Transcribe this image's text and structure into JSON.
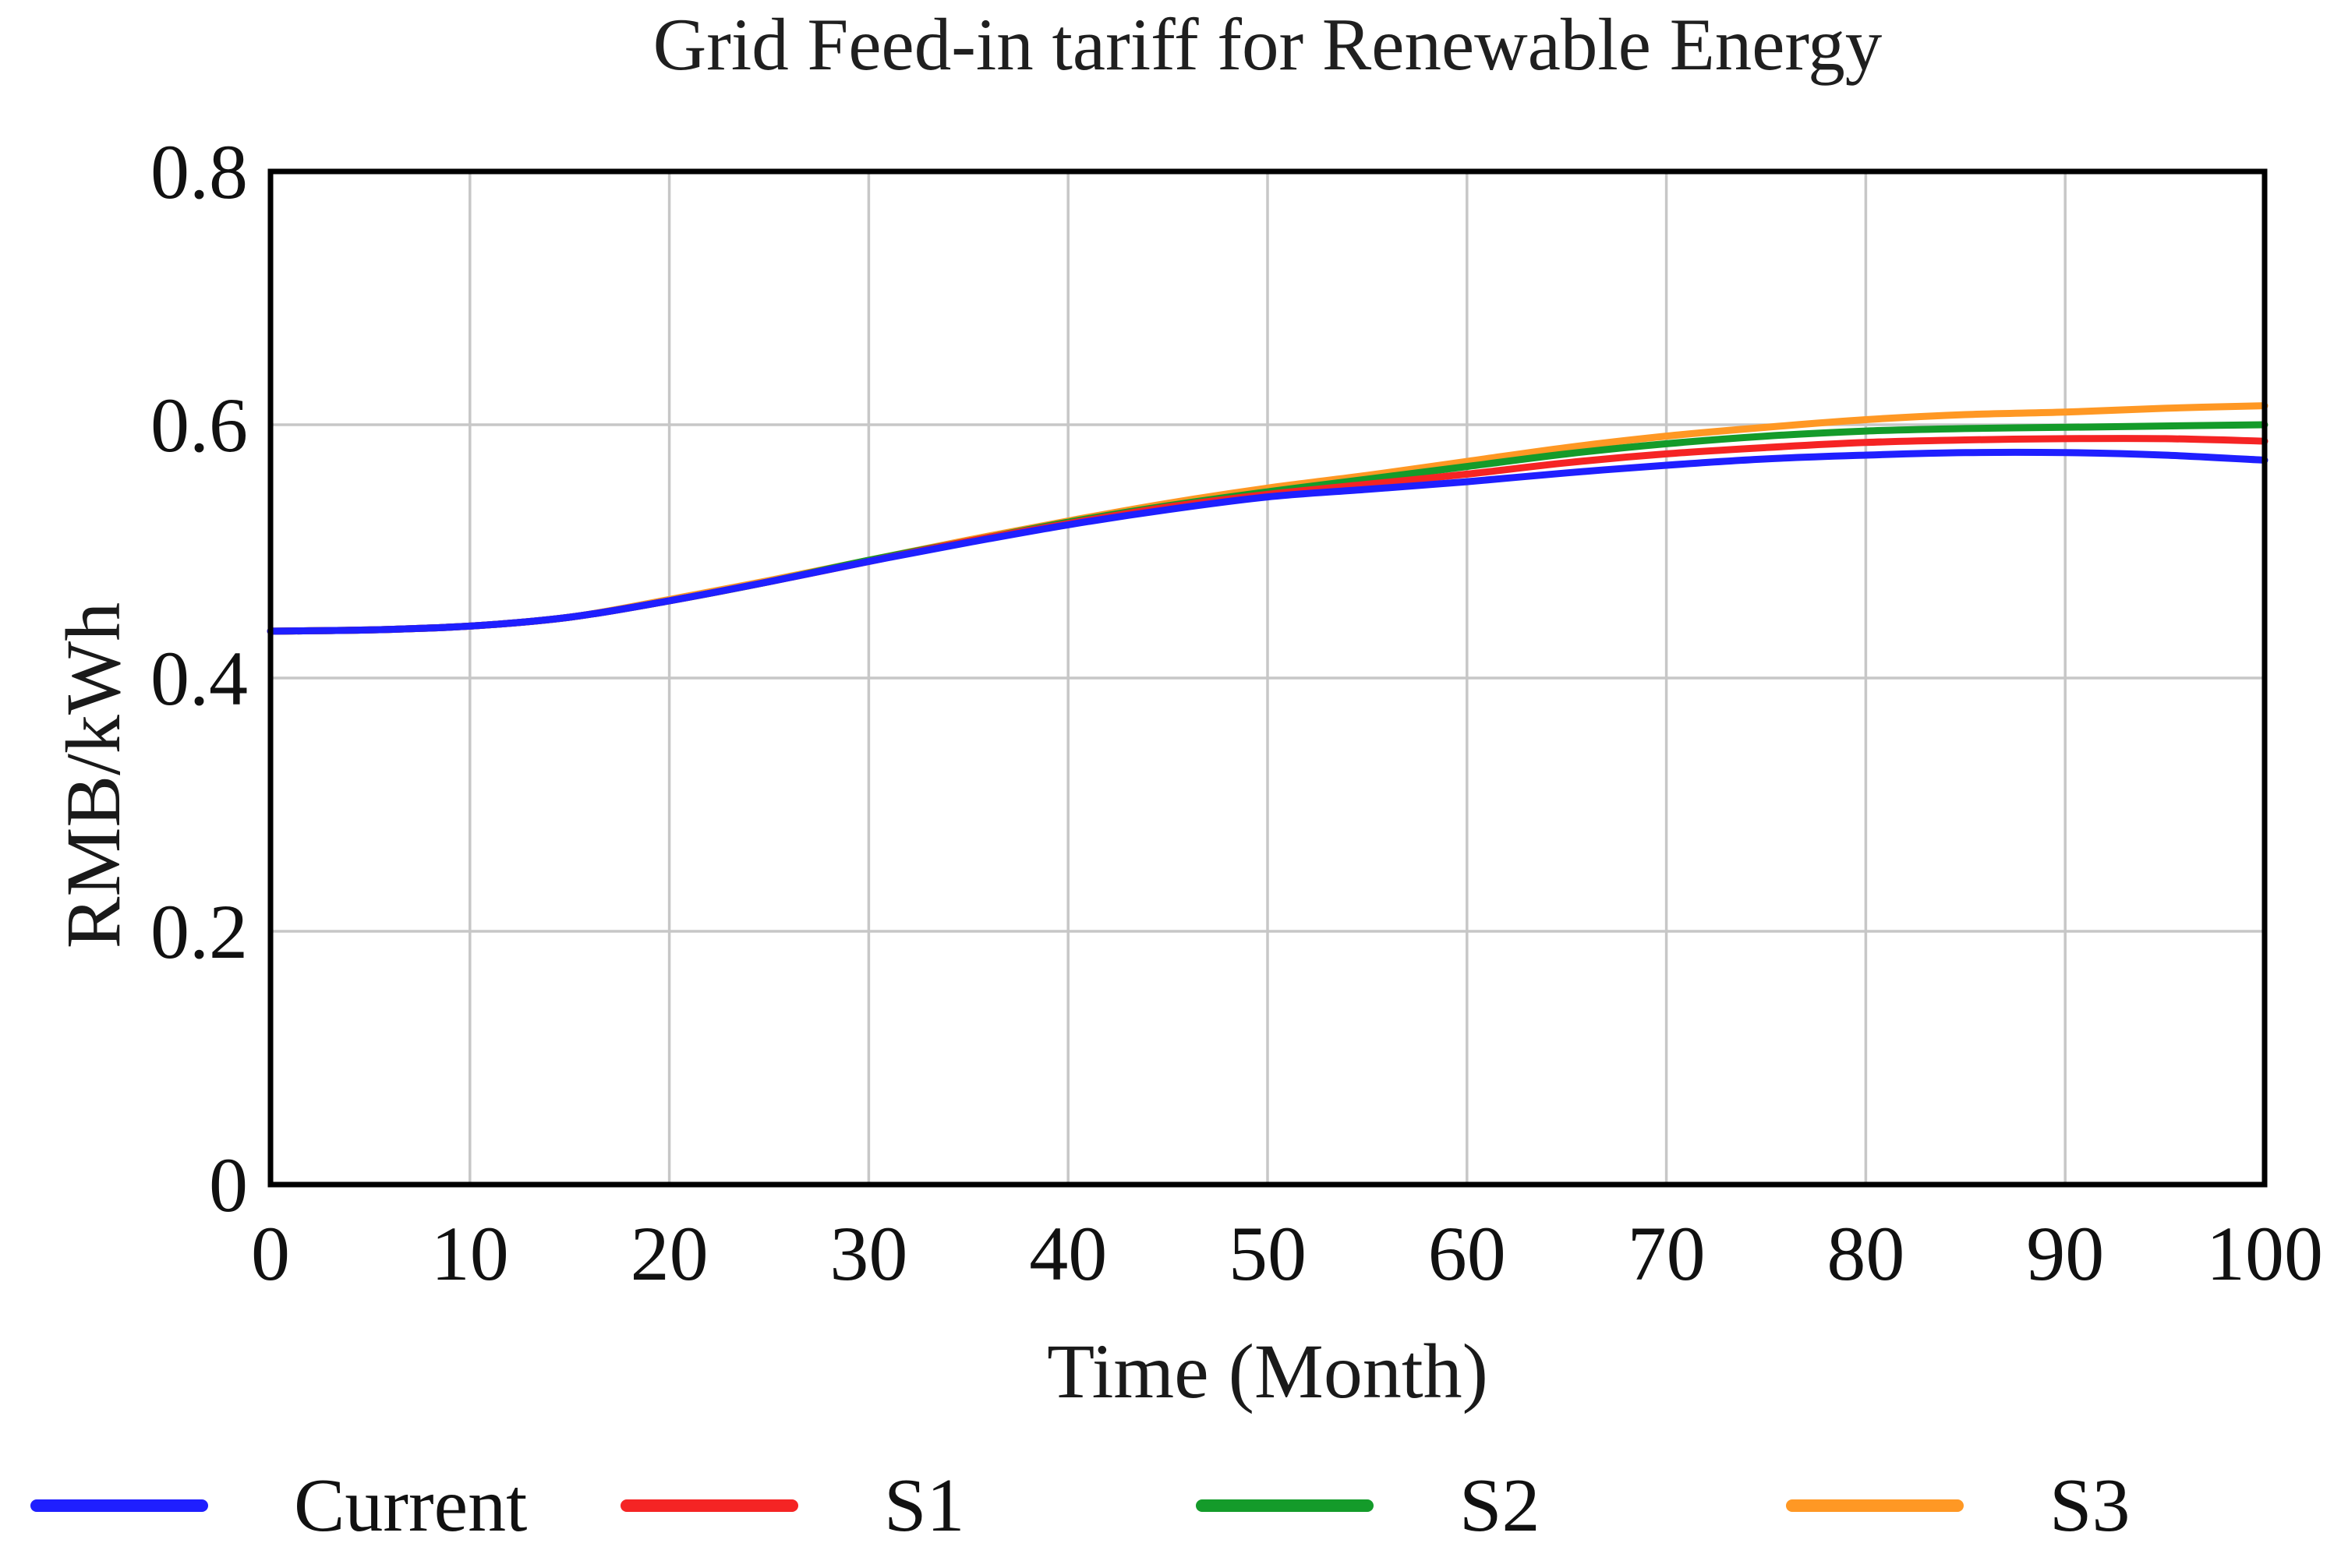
{
  "page": {
    "background": "#ffffff"
  },
  "chart_data": {
    "type": "line",
    "title": "Grid Feed-in tariff for Renewable Energy",
    "xlabel": "Time (Month)",
    "ylabel": "RMB/kWh",
    "xlim": [
      0,
      100
    ],
    "ylim": [
      0,
      0.8
    ],
    "x_ticks": [
      0,
      10,
      20,
      30,
      40,
      50,
      60,
      70,
      80,
      90,
      100
    ],
    "x_tick_labels": [
      "0",
      "10",
      "20",
      "30",
      "40",
      "50",
      "60",
      "70",
      "80",
      "90",
      "100"
    ],
    "y_ticks": [
      0,
      0.2,
      0.4,
      0.6,
      0.8
    ],
    "y_tick_labels": [
      "0",
      "0.2",
      "0.4",
      "0.6",
      "0.8"
    ],
    "grid": true,
    "grid_color": "#c7c7c7",
    "frame_color": "#000000",
    "legend_position": "bottom",
    "x": [
      0,
      5,
      10,
      15,
      20,
      25,
      30,
      35,
      40,
      45,
      50,
      55,
      60,
      65,
      70,
      75,
      80,
      85,
      90,
      95,
      100
    ],
    "series": [
      {
        "name": "Current",
        "color": "#1f1fff",
        "values": [
          0.437,
          0.438,
          0.441,
          0.448,
          0.461,
          0.476,
          0.492,
          0.507,
          0.521,
          0.533,
          0.543,
          0.549,
          0.555,
          0.562,
          0.568,
          0.573,
          0.576,
          0.578,
          0.578,
          0.576,
          0.572
        ]
      },
      {
        "name": "S1",
        "color": "#f52424",
        "values": [
          0.437,
          0.438,
          0.441,
          0.448,
          0.461,
          0.476,
          0.492,
          0.508,
          0.522,
          0.535,
          0.545,
          0.553,
          0.561,
          0.57,
          0.577,
          0.582,
          0.586,
          0.588,
          0.589,
          0.589,
          0.587
        ]
      },
      {
        "name": "S2",
        "color": "#149b2a",
        "values": [
          0.437,
          0.438,
          0.441,
          0.448,
          0.461,
          0.476,
          0.493,
          0.508,
          0.523,
          0.536,
          0.547,
          0.557,
          0.567,
          0.577,
          0.585,
          0.591,
          0.595,
          0.597,
          0.598,
          0.599,
          0.6
        ]
      },
      {
        "name": "S3",
        "color": "#ff9824",
        "values": [
          0.437,
          0.438,
          0.441,
          0.448,
          0.462,
          0.477,
          0.493,
          0.509,
          0.524,
          0.538,
          0.55,
          0.56,
          0.571,
          0.582,
          0.591,
          0.598,
          0.604,
          0.608,
          0.61,
          0.613,
          0.615
        ]
      }
    ]
  }
}
